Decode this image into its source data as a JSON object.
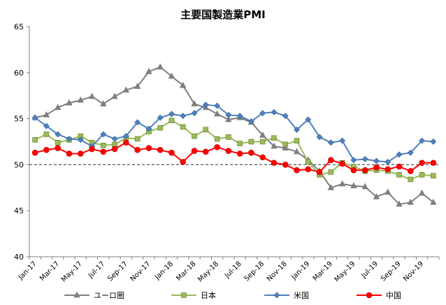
{
  "chart_data": {
    "type": "line",
    "title": "主要国製造業PMI",
    "ylim": [
      40,
      65
    ],
    "yticks": [
      40,
      45,
      50,
      55,
      60,
      65
    ],
    "reference_line": 50,
    "x": [
      "Jan-17",
      "Feb-17",
      "Mar-17",
      "Apr-17",
      "May-17",
      "Jun-17",
      "Jul-17",
      "Aug-17",
      "Sep-17",
      "Oct-17",
      "Nov-17",
      "Dec-17",
      "Jan-18",
      "Feb-18",
      "Mar-18",
      "Apr-18",
      "May-18",
      "Jun-18",
      "Jul-18",
      "Aug-18",
      "Sep-18",
      "Oct-18",
      "Nov-18",
      "Dec-18",
      "Jan-19",
      "Feb-19",
      "Mar-19",
      "Apr-19",
      "May-19",
      "Jun-19",
      "Jul-19",
      "Aug-19",
      "Sep-19",
      "Oct-19",
      "Nov-19",
      "Dec-19"
    ],
    "x_tick_labels": [
      "Jan-17",
      "Mar-17",
      "May-17",
      "Jul-17",
      "Sep-17",
      "Nov-17",
      "Jan-18",
      "Mar-18",
      "May-18",
      "Jul-18",
      "Sep-18",
      "Nov-18",
      "Jan-19",
      "Mar-19",
      "May-19",
      "Jul-19",
      "Sep-19",
      "Nov-19"
    ],
    "series": [
      {
        "name": "ユーロ圏",
        "color": "#7f7f7f",
        "marker": "triangle",
        "values": [
          55.1,
          55.4,
          56.2,
          56.7,
          57.0,
          57.4,
          56.6,
          57.4,
          58.1,
          58.5,
          60.1,
          60.6,
          59.6,
          58.6,
          56.6,
          56.2,
          55.5,
          54.9,
          55.1,
          54.6,
          53.2,
          52.0,
          51.8,
          51.4,
          50.5,
          49.3,
          47.5,
          47.9,
          47.7,
          47.6,
          46.5,
          47.0,
          45.7,
          45.9,
          46.9,
          45.9
        ]
      },
      {
        "name": "日本",
        "color": "#9bbb59",
        "marker": "square",
        "values": [
          52.7,
          53.3,
          52.4,
          52.7,
          53.1,
          52.4,
          52.1,
          52.2,
          52.9,
          52.8,
          53.6,
          54.0,
          54.8,
          54.1,
          53.1,
          53.8,
          52.8,
          53.0,
          52.3,
          52.5,
          52.5,
          52.9,
          52.2,
          52.6,
          50.3,
          48.9,
          49.2,
          50.2,
          49.8,
          49.3,
          49.4,
          49.3,
          48.9,
          48.4,
          48.9,
          48.8
        ]
      },
      {
        "name": "米国",
        "color": "#4f81bd",
        "marker": "diamond",
        "values": [
          55.1,
          54.2,
          53.3,
          52.8,
          52.7,
          52.0,
          53.3,
          52.8,
          53.1,
          54.6,
          53.9,
          55.1,
          55.5,
          55.3,
          55.6,
          56.5,
          56.4,
          55.4,
          55.3,
          54.7,
          55.6,
          55.7,
          55.3,
          53.8,
          54.9,
          53.0,
          52.4,
          52.6,
          50.5,
          50.6,
          50.4,
          50.3,
          51.1,
          51.3,
          52.6,
          52.5
        ]
      },
      {
        "name": "中国",
        "color": "#ff0000",
        "marker": "circle",
        "values": [
          51.3,
          51.6,
          51.8,
          51.2,
          51.2,
          51.7,
          51.4,
          51.7,
          52.4,
          51.6,
          51.8,
          51.6,
          51.3,
          50.3,
          51.5,
          51.4,
          51.9,
          51.5,
          51.2,
          51.3,
          50.8,
          50.2,
          50.0,
          49.4,
          49.5,
          49.2,
          50.5,
          50.1,
          49.4,
          49.4,
          49.7,
          49.5,
          49.8,
          49.3,
          50.2,
          50.2
        ]
      }
    ]
  }
}
